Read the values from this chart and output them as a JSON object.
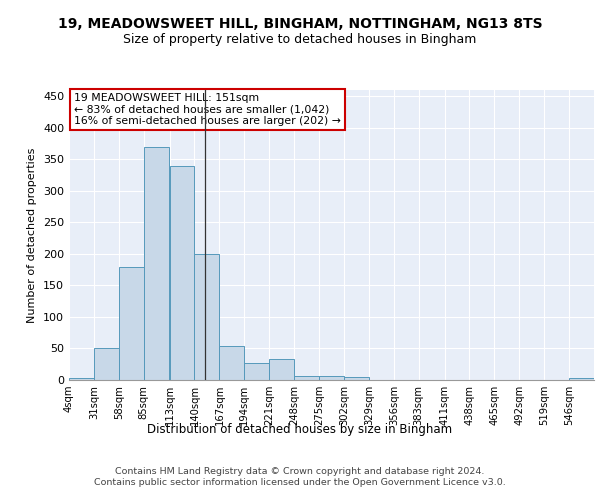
{
  "title": "19, MEADOWSWEET HILL, BINGHAM, NOTTINGHAM, NG13 8TS",
  "subtitle": "Size of property relative to detached houses in Bingham",
  "xlabel": "Distribution of detached houses by size in Bingham",
  "ylabel": "Number of detached properties",
  "bar_color": "#c8d8e8",
  "bar_edge_color": "#5599bb",
  "background_color": "#e8eef8",
  "grid_color": "#ffffff",
  "annotation_text": "19 MEADOWSWEET HILL: 151sqm\n← 83% of detached houses are smaller (1,042)\n16% of semi-detached houses are larger (202) →",
  "vline_x": 151,
  "categories": [
    "4sqm",
    "31sqm",
    "58sqm",
    "85sqm",
    "113sqm",
    "140sqm",
    "167sqm",
    "194sqm",
    "221sqm",
    "248sqm",
    "275sqm",
    "302sqm",
    "329sqm",
    "356sqm",
    "383sqm",
    "411sqm",
    "438sqm",
    "465sqm",
    "492sqm",
    "519sqm",
    "546sqm"
  ],
  "bin_edges": [
    4,
    31,
    58,
    85,
    113,
    140,
    167,
    194,
    221,
    248,
    275,
    302,
    329,
    356,
    383,
    411,
    438,
    465,
    492,
    519,
    546
  ],
  "values": [
    3,
    50,
    180,
    370,
    340,
    200,
    54,
    27,
    33,
    6,
    6,
    4,
    0,
    0,
    0,
    0,
    0,
    0,
    0,
    0,
    3
  ],
  "ylim": [
    0,
    460
  ],
  "yticks": [
    0,
    50,
    100,
    150,
    200,
    250,
    300,
    350,
    400,
    450
  ],
  "footer": "Contains HM Land Registry data © Crown copyright and database right 2024.\nContains public sector information licensed under the Open Government Licence v3.0.",
  "title_fontsize": 10,
  "subtitle_fontsize": 9,
  "fig_bg": "#ffffff",
  "annotation_box_color": "white",
  "annotation_box_edge": "#cc0000"
}
